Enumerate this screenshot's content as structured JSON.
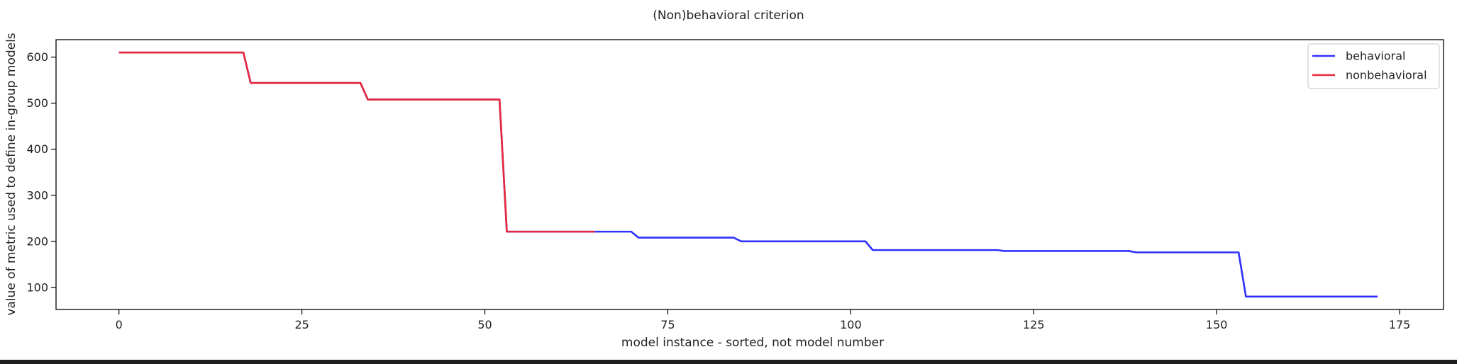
{
  "chart_data": {
    "type": "line",
    "title": "(Non)behavioral criterion",
    "xlabel": "model instance - sorted, not model number",
    "ylabel": "value of metric used to define in-group models",
    "xlim": [
      -8.6,
      181
    ],
    "ylim": [
      52,
      638
    ],
    "xticks": [
      0,
      25,
      50,
      75,
      100,
      125,
      150,
      175
    ],
    "yticks": [
      100,
      200,
      300,
      400,
      500,
      600
    ],
    "grid": false,
    "legend_position": "top-right",
    "series": [
      {
        "name": "behavioral",
        "color": "#2f2fff",
        "points": [
          [
            0,
            610
          ],
          [
            17,
            610
          ],
          [
            18,
            544
          ],
          [
            33,
            544
          ],
          [
            34,
            508
          ],
          [
            52,
            508
          ],
          [
            53,
            221
          ],
          [
            70,
            221
          ],
          [
            71,
            208
          ],
          [
            84,
            208
          ],
          [
            85,
            200
          ],
          [
            102,
            200
          ],
          [
            103,
            181
          ],
          [
            120,
            181
          ],
          [
            121,
            179
          ],
          [
            138,
            179
          ],
          [
            139,
            176
          ],
          [
            153,
            176
          ],
          [
            154,
            80
          ],
          [
            172,
            80
          ]
        ]
      },
      {
        "name": "nonbehavioral",
        "color": "#e8283a",
        "points": [
          [
            0,
            610
          ],
          [
            17,
            610
          ],
          [
            18,
            544
          ],
          [
            33,
            544
          ],
          [
            34,
            508
          ],
          [
            52,
            508
          ],
          [
            53,
            221
          ],
          [
            65,
            221
          ]
        ]
      }
    ]
  }
}
